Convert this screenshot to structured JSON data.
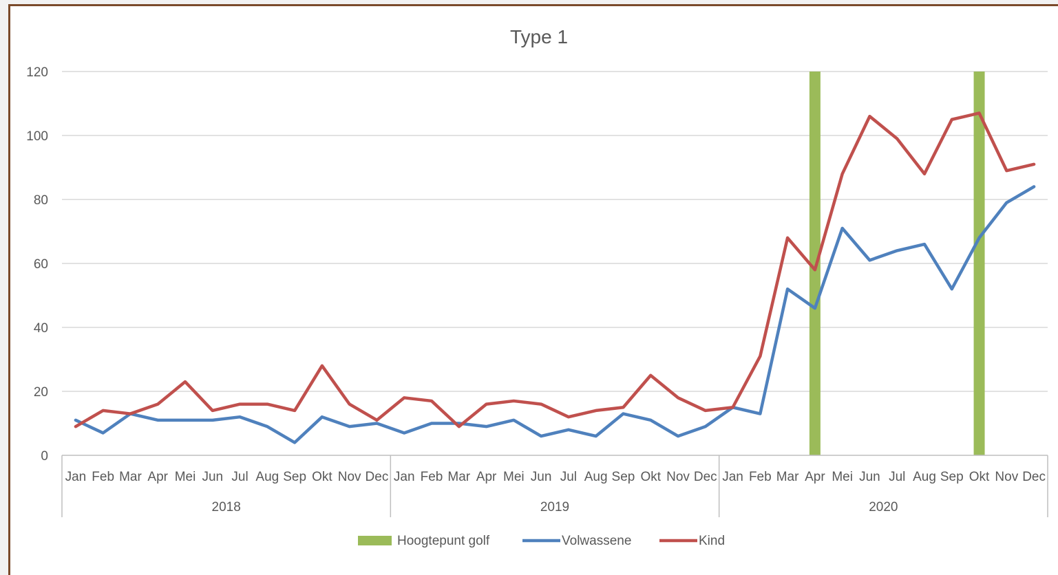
{
  "chart_data": {
    "type": "line",
    "title": "Type 1",
    "years": [
      "2018",
      "2019",
      "2020"
    ],
    "categories": [
      "Jan",
      "Feb",
      "Mar",
      "Apr",
      "Mei",
      "Jun",
      "Jul",
      "Aug",
      "Sep",
      "Okt",
      "Nov",
      "Dec",
      "Jan",
      "Feb",
      "Mar",
      "Apr",
      "Mei",
      "Jun",
      "Jul",
      "Aug",
      "Sep",
      "Okt",
      "Nov",
      "Dec",
      "Jan",
      "Feb",
      "Mar",
      "Apr",
      "Mei",
      "Jun",
      "Jul",
      "Aug",
      "Sep",
      "Okt",
      "Nov",
      "Dec"
    ],
    "ylim": [
      0,
      120
    ],
    "yticks": [
      "0",
      "20",
      "40",
      "60",
      "80",
      "100",
      "120"
    ],
    "grid": true,
    "legend_position": "bottom",
    "series": [
      {
        "name": "Hoogtepunt golf",
        "kind": "bar",
        "color": "#9bbb59",
        "values": [
          null,
          null,
          null,
          null,
          null,
          null,
          null,
          null,
          null,
          null,
          null,
          null,
          null,
          null,
          null,
          null,
          null,
          null,
          null,
          null,
          null,
          null,
          null,
          null,
          null,
          null,
          null,
          120,
          null,
          null,
          null,
          null,
          null,
          120,
          null,
          null
        ]
      },
      {
        "name": "Volwassene",
        "kind": "line",
        "color": "#4f81bd",
        "values": [
          11,
          7,
          13,
          11,
          11,
          11,
          12,
          9,
          4,
          12,
          9,
          10,
          7,
          10,
          10,
          9,
          11,
          6,
          8,
          6,
          13,
          11,
          6,
          9,
          15,
          13,
          52,
          46,
          71,
          61,
          64,
          66,
          52,
          68,
          79,
          84
        ]
      },
      {
        "name": "Kind",
        "kind": "line",
        "color": "#c0504d",
        "values": [
          9,
          14,
          13,
          16,
          23,
          14,
          16,
          16,
          14,
          28,
          16,
          11,
          18,
          17,
          9,
          16,
          17,
          16,
          12,
          14,
          15,
          25,
          18,
          14,
          15,
          31,
          68,
          58,
          88,
          106,
          99,
          88,
          105,
          107,
          89,
          91
        ]
      }
    ]
  }
}
